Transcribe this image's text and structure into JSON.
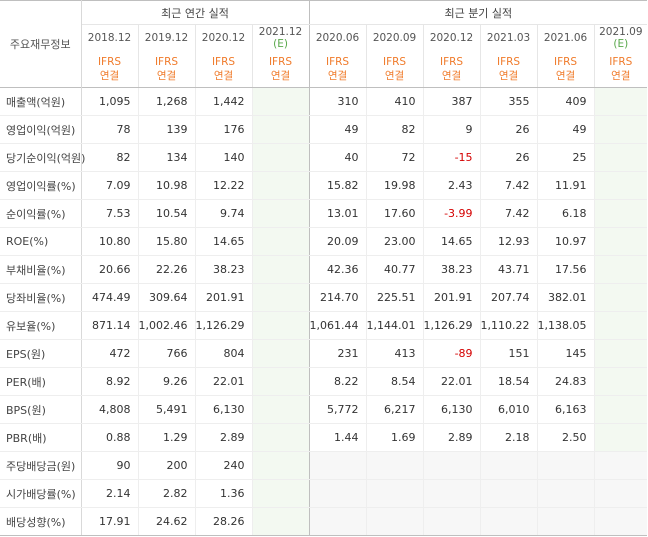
{
  "header": {
    "row_label": "주요재무정보",
    "annual_title": "최근 연간 실적",
    "quarter_title": "최근 분기 실적",
    "annual_periods": [
      "2018.12",
      "2019.12",
      "2020.12",
      "2021.12"
    ],
    "annual_est_flag": "(E)",
    "quarter_periods": [
      "2020.06",
      "2020.09",
      "2020.12",
      "2021.03",
      "2021.06",
      "2021.09"
    ],
    "quarter_est_flag": "(E)",
    "ifrs_top": "IFRS",
    "ifrs_bottom": "연결"
  },
  "colors": {
    "ifrs": "#f07b2b",
    "estimate": "#59a84b",
    "negative": "#d40000",
    "estimate_bg": "#f3f9f1",
    "blank_bg": "#f7f7f7"
  },
  "rows": [
    {
      "label": "매출액(억원)",
      "annual": [
        "1,095",
        "1,268",
        "1,442",
        ""
      ],
      "quarter": [
        "310",
        "410",
        "387",
        "355",
        "409",
        ""
      ]
    },
    {
      "label": "영업이익(억원)",
      "annual": [
        "78",
        "139",
        "176",
        ""
      ],
      "quarter": [
        "49",
        "82",
        "9",
        "26",
        "49",
        ""
      ]
    },
    {
      "label": "당기순이익(억원)",
      "annual": [
        "82",
        "134",
        "140",
        ""
      ],
      "quarter": [
        "40",
        "72",
        "-15",
        "26",
        "25",
        ""
      ]
    },
    {
      "label": "영업이익률(%)",
      "annual": [
        "7.09",
        "10.98",
        "12.22",
        ""
      ],
      "quarter": [
        "15.82",
        "19.98",
        "2.43",
        "7.42",
        "11.91",
        ""
      ]
    },
    {
      "label": "순이익률(%)",
      "annual": [
        "7.53",
        "10.54",
        "9.74",
        ""
      ],
      "quarter": [
        "13.01",
        "17.60",
        "-3.99",
        "7.42",
        "6.18",
        ""
      ]
    },
    {
      "label": "ROE(%)",
      "annual": [
        "10.80",
        "15.80",
        "14.65",
        ""
      ],
      "quarter": [
        "20.09",
        "23.00",
        "14.65",
        "12.93",
        "10.97",
        ""
      ]
    },
    {
      "label": "부채비율(%)",
      "annual": [
        "20.66",
        "22.26",
        "38.23",
        ""
      ],
      "quarter": [
        "42.36",
        "40.77",
        "38.23",
        "43.71",
        "17.56",
        ""
      ]
    },
    {
      "label": "당좌비율(%)",
      "annual": [
        "474.49",
        "309.64",
        "201.91",
        ""
      ],
      "quarter": [
        "214.70",
        "225.51",
        "201.91",
        "207.74",
        "382.01",
        ""
      ]
    },
    {
      "label": "유보율(%)",
      "annual": [
        "871.14",
        "1,002.46",
        "1,126.29",
        ""
      ],
      "quarter": [
        "1,061.44",
        "1,144.01",
        "1,126.29",
        "1,110.22",
        "1,138.05",
        ""
      ]
    },
    {
      "label": "EPS(원)",
      "annual": [
        "472",
        "766",
        "804",
        ""
      ],
      "quarter": [
        "231",
        "413",
        "-89",
        "151",
        "145",
        ""
      ]
    },
    {
      "label": "PER(배)",
      "annual": [
        "8.92",
        "9.26",
        "22.01",
        ""
      ],
      "quarter": [
        "8.22",
        "8.54",
        "22.01",
        "18.54",
        "24.83",
        ""
      ]
    },
    {
      "label": "BPS(원)",
      "annual": [
        "4,808",
        "5,491",
        "6,130",
        ""
      ],
      "quarter": [
        "5,772",
        "6,217",
        "6,130",
        "6,010",
        "6,163",
        ""
      ]
    },
    {
      "label": "PBR(배)",
      "annual": [
        "0.88",
        "1.29",
        "2.89",
        ""
      ],
      "quarter": [
        "1.44",
        "1.69",
        "2.89",
        "2.18",
        "2.50",
        ""
      ]
    },
    {
      "label": "주당배당금(원)",
      "annual": [
        "90",
        "200",
        "240",
        ""
      ],
      "quarter": [
        "",
        "",
        "",
        "",
        "",
        ""
      ]
    },
    {
      "label": "시가배당률(%)",
      "annual": [
        "2.14",
        "2.82",
        "1.36",
        ""
      ],
      "quarter": [
        "",
        "",
        "",
        "",
        "",
        ""
      ]
    },
    {
      "label": "배당성향(%)",
      "annual": [
        "17.91",
        "24.62",
        "28.26",
        ""
      ],
      "quarter": [
        "",
        "",
        "",
        "",
        "",
        ""
      ]
    }
  ]
}
